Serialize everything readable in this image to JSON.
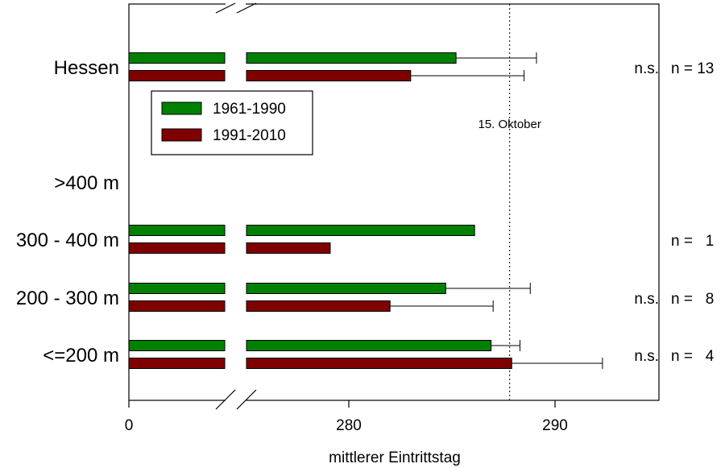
{
  "chart_data": {
    "type": "bar",
    "orientation": "horizontal",
    "xlabel": "mittlerer Eintrittstag",
    "ylabel": "",
    "title": "",
    "axis_break": true,
    "x_ticks": [
      {
        "label": "0",
        "value": 0
      },
      {
        "label": "280",
        "value": 280
      },
      {
        "label": "290",
        "value": 290
      }
    ],
    "categories": [
      "Hessen",
      ">400 m",
      "300 - 400 m",
      "200 - 300 m",
      "<=200 m"
    ],
    "series": [
      {
        "name": "1961-1990",
        "color": "#008000",
        "values": [
          285.2,
          null,
          286.1,
          284.7,
          286.9
        ],
        "error_upper": [
          289.1,
          null,
          null,
          288.8,
          288.3
        ]
      },
      {
        "name": "1991-2010",
        "color": "#7f0000",
        "values": [
          283.0,
          null,
          279.1,
          282.0,
          287.9
        ],
        "error_upper": [
          288.5,
          null,
          null,
          287.0,
          292.3
        ]
      }
    ],
    "significance": [
      "n.s.",
      "",
      "",
      "n.s.",
      "n.s."
    ],
    "n_labels": [
      "n = 13",
      "",
      "n =   1",
      "n =   8",
      "n =   4"
    ],
    "reference_line": {
      "value": 287.8,
      "label": "15. Oktober"
    },
    "legend_position": "upper-left"
  }
}
